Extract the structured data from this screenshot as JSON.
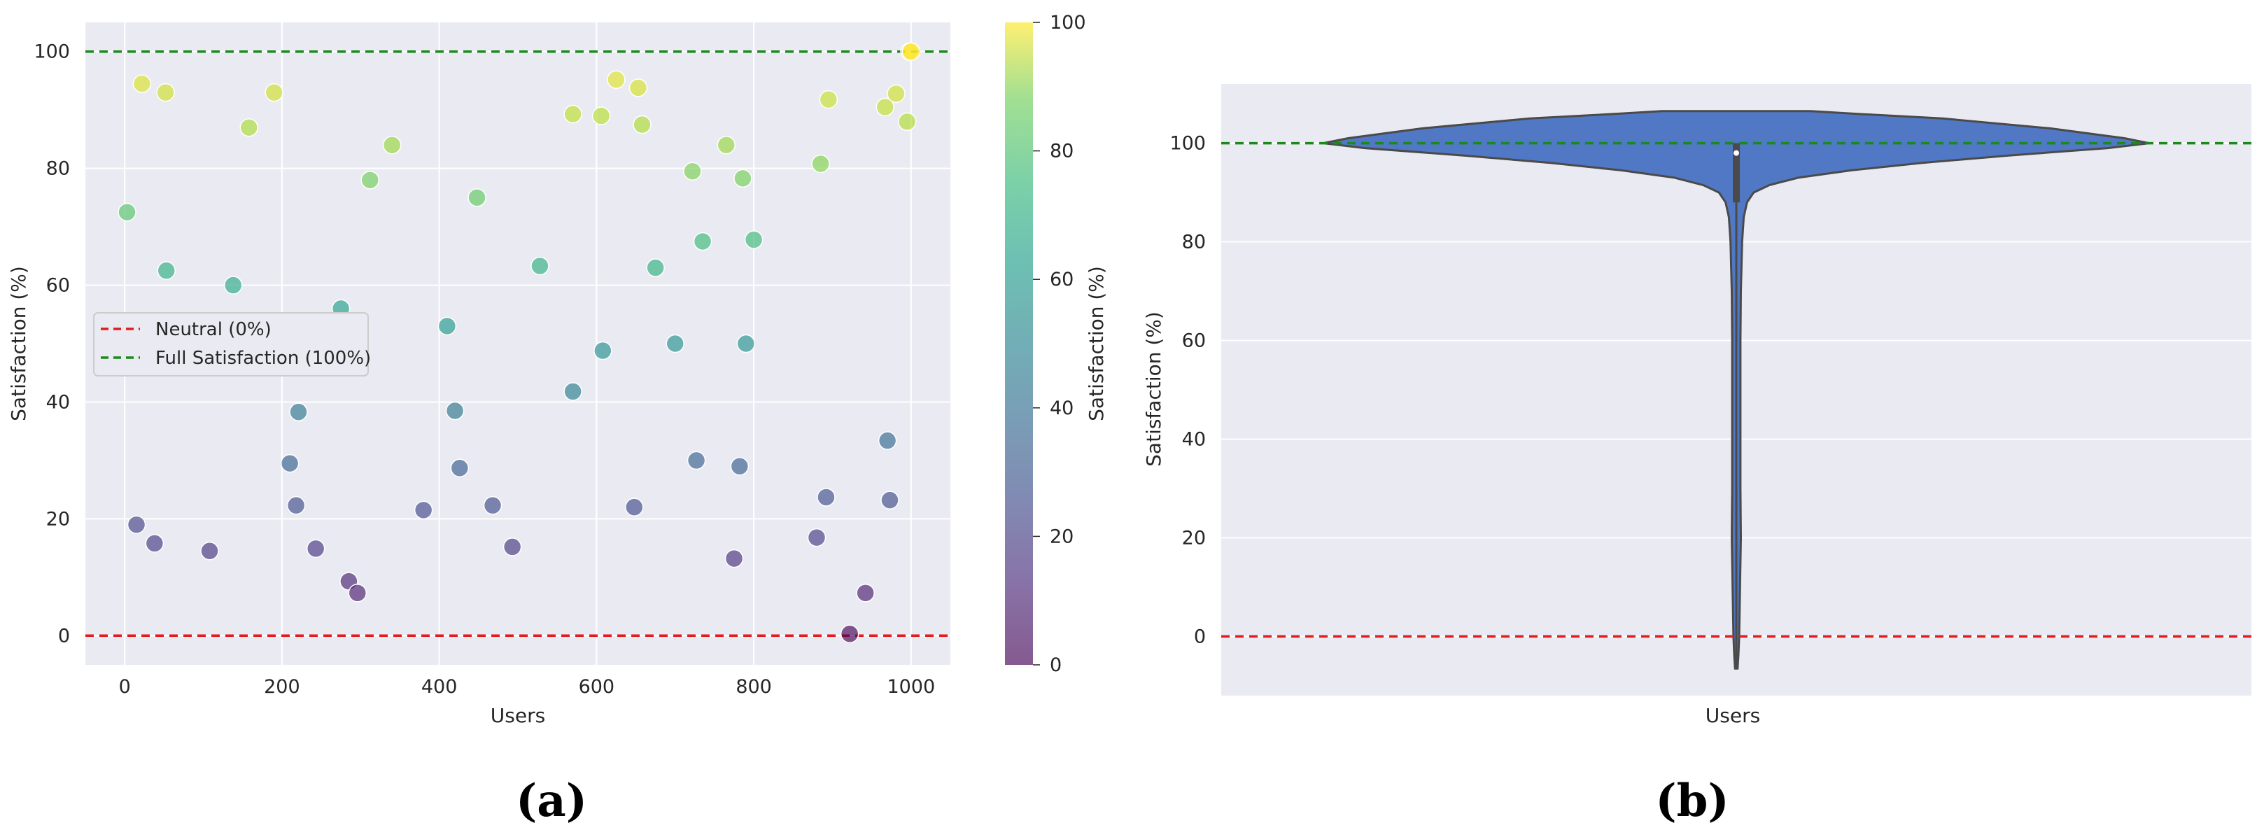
{
  "panels": {
    "a": "(a)",
    "b": "(b)"
  },
  "chart_data": [
    {
      "type": "scatter",
      "title": "",
      "xlabel": "Users",
      "ylabel": "Satisfaction (%)",
      "xlim": [
        -50,
        1050
      ],
      "ylim": [
        -5,
        105
      ],
      "xticks": [
        "0",
        "200",
        "400",
        "600",
        "800",
        "1000"
      ],
      "yticks": [
        "0",
        "20",
        "40",
        "60",
        "80",
        "100"
      ],
      "grid": true,
      "legend_position": "center-left",
      "reference_lines": [
        {
          "name": "Neutral (0%)",
          "y": 0,
          "color": "#e41a1c"
        },
        {
          "name": "Full Satisfaction (100%)",
          "y": 100,
          "color": "#1a8a1a"
        }
      ],
      "colorbar": {
        "label": "Satisfaction (%)",
        "range": [
          0,
          100
        ],
        "ticks": [
          "0",
          "20",
          "40",
          "60",
          "80",
          "100"
        ],
        "colormap": "viridis"
      },
      "points": [
        [
          3,
          72.5
        ],
        [
          15,
          19
        ],
        [
          22,
          94.5
        ],
        [
          38,
          15.8
        ],
        [
          52,
          93
        ],
        [
          53,
          62.5
        ],
        [
          108,
          14.5
        ],
        [
          138,
          60
        ],
        [
          158,
          87
        ],
        [
          190,
          93
        ],
        [
          210,
          29.5
        ],
        [
          218,
          22.3
        ],
        [
          221,
          38.3
        ],
        [
          243,
          14.9
        ],
        [
          275,
          56
        ],
        [
          285,
          9.3
        ],
        [
          296,
          7.3
        ],
        [
          312,
          78
        ],
        [
          340,
          84
        ],
        [
          380,
          21.5
        ],
        [
          410,
          53
        ],
        [
          420,
          38.5
        ],
        [
          426,
          28.7
        ],
        [
          448,
          75
        ],
        [
          468,
          22.3
        ],
        [
          493,
          15.2
        ],
        [
          528,
          63.3
        ],
        [
          570,
          89.3
        ],
        [
          570,
          41.8
        ],
        [
          606,
          89
        ],
        [
          608,
          48.8
        ],
        [
          625,
          95.2
        ],
        [
          648,
          22
        ],
        [
          653,
          93.8
        ],
        [
          658,
          87.5
        ],
        [
          675,
          63
        ],
        [
          700,
          50
        ],
        [
          722,
          79.5
        ],
        [
          727,
          30
        ],
        [
          735,
          67.5
        ],
        [
          765,
          84
        ],
        [
          775,
          13.2
        ],
        [
          782,
          29
        ],
        [
          786,
          78.3
        ],
        [
          790,
          50
        ],
        [
          800,
          67.8
        ],
        [
          880,
          16.8
        ],
        [
          885,
          80.8
        ],
        [
          892,
          23.7
        ],
        [
          895,
          91.8
        ],
        [
          942,
          7.3
        ],
        [
          922,
          0.3
        ],
        [
          967,
          90.5
        ],
        [
          970,
          33.4
        ],
        [
          973,
          23.2
        ],
        [
          981,
          92.8
        ],
        [
          995,
          88
        ],
        [
          998,
          100
        ],
        [
          1000,
          100
        ]
      ]
    },
    {
      "type": "violin",
      "title": "",
      "xlabel": "Users",
      "ylabel": "Satisfaction (%)",
      "ylim": [
        -12,
        112
      ],
      "yticks": [
        "0",
        "20",
        "40",
        "60",
        "80",
        "100"
      ],
      "grid": true,
      "fill_color": "#5178c5",
      "reference_lines": [
        {
          "y": 0,
          "color": "#e41a1c"
        },
        {
          "y": 100,
          "color": "#1a8a1a"
        }
      ],
      "range": [
        -6.5,
        106.5
      ],
      "box": {
        "q1": 88,
        "median": 98,
        "q3": 100
      }
    }
  ]
}
